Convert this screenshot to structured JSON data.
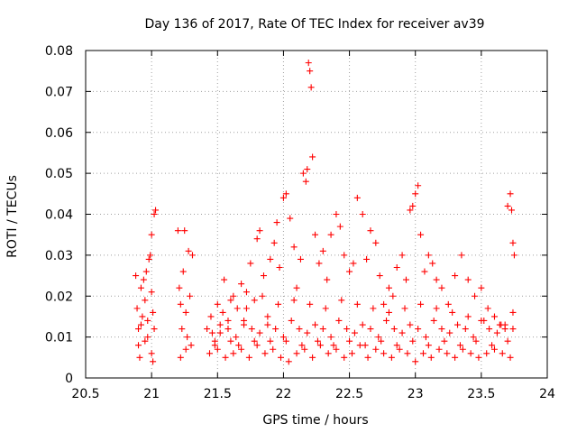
{
  "chart_data": {
    "type": "scatter",
    "title": "Day 136 of 2017, Rate Of TEC Index for receiver av39",
    "xlabel": "GPS time / hours",
    "ylabel": "ROTI / TECUs",
    "xlim": [
      20.5,
      24
    ],
    "ylim": [
      0,
      0.08
    ],
    "xticks": [
      20.5,
      21,
      21.5,
      22,
      22.5,
      23,
      23.5,
      24
    ],
    "xtick_labels": [
      "20.5",
      "21",
      "21.5",
      "22",
      "22.5",
      "23",
      "23.5",
      "24"
    ],
    "yticks": [
      0,
      0.01,
      0.02,
      0.03,
      0.04,
      0.05,
      0.06,
      0.07,
      0.08
    ],
    "ytick_labels": [
      "0",
      "0.01",
      "0.02",
      "0.03",
      "0.04",
      "0.05",
      "0.06",
      "0.07",
      "0.08"
    ],
    "grid": true,
    "marker": "+",
    "marker_color": "#ff0000",
    "series": [
      {
        "name": "ROTI",
        "points": [
          [
            20.88,
            0.025
          ],
          [
            20.89,
            0.017
          ],
          [
            20.9,
            0.012
          ],
          [
            20.9,
            0.008
          ],
          [
            20.91,
            0.005
          ],
          [
            20.92,
            0.022
          ],
          [
            20.93,
            0.015
          ],
          [
            20.94,
            0.024
          ],
          [
            20.95,
            0.019
          ],
          [
            20.96,
            0.026
          ],
          [
            20.97,
            0.01
          ],
          [
            20.98,
            0.029
          ],
          [
            20.99,
            0.03
          ],
          [
            21.0,
            0.035
          ],
          [
            21.0,
            0.021
          ],
          [
            21.01,
            0.016
          ],
          [
            21.02,
            0.04
          ],
          [
            21.03,
            0.041
          ],
          [
            21.02,
            0.012
          ],
          [
            21.0,
            0.006
          ],
          [
            20.95,
            0.009
          ],
          [
            20.92,
            0.013
          ],
          [
            21.01,
            0.004
          ],
          [
            20.97,
            0.014
          ],
          [
            21.2,
            0.036
          ],
          [
            21.21,
            0.022
          ],
          [
            21.22,
            0.018
          ],
          [
            21.23,
            0.012
          ],
          [
            21.24,
            0.026
          ],
          [
            21.25,
            0.036
          ],
          [
            21.26,
            0.016
          ],
          [
            21.27,
            0.01
          ],
          [
            21.28,
            0.031
          ],
          [
            21.29,
            0.02
          ],
          [
            21.3,
            0.008
          ],
          [
            21.31,
            0.03
          ],
          [
            21.22,
            0.005
          ],
          [
            21.26,
            0.007
          ],
          [
            21.42,
            0.012
          ],
          [
            21.45,
            0.015
          ],
          [
            21.48,
            0.008
          ],
          [
            21.5,
            0.018
          ],
          [
            21.52,
            0.011
          ],
          [
            21.55,
            0.024
          ],
          [
            21.58,
            0.014
          ],
          [
            21.6,
            0.009
          ],
          [
            21.62,
            0.02
          ],
          [
            21.65,
            0.017
          ],
          [
            21.68,
            0.023
          ],
          [
            21.7,
            0.013
          ],
          [
            21.72,
            0.021
          ],
          [
            21.75,
            0.028
          ],
          [
            21.78,
            0.019
          ],
          [
            21.8,
            0.034
          ],
          [
            21.82,
            0.036
          ],
          [
            21.85,
            0.025
          ],
          [
            21.88,
            0.015
          ],
          [
            21.9,
            0.029
          ],
          [
            21.93,
            0.033
          ],
          [
            21.95,
            0.038
          ],
          [
            21.97,
            0.027
          ],
          [
            22.0,
            0.044
          ],
          [
            22.02,
            0.045
          ],
          [
            22.05,
            0.039
          ],
          [
            22.08,
            0.032
          ],
          [
            22.1,
            0.022
          ],
          [
            22.13,
            0.029
          ],
          [
            22.15,
            0.05
          ],
          [
            22.17,
            0.048
          ],
          [
            22.18,
            0.051
          ],
          [
            22.19,
            0.077
          ],
          [
            22.2,
            0.075
          ],
          [
            22.21,
            0.071
          ],
          [
            22.22,
            0.054
          ],
          [
            22.24,
            0.035
          ],
          [
            22.27,
            0.028
          ],
          [
            22.3,
            0.031
          ],
          [
            22.33,
            0.024
          ],
          [
            22.36,
            0.035
          ],
          [
            22.4,
            0.04
          ],
          [
            22.43,
            0.037
          ],
          [
            22.46,
            0.03
          ],
          [
            22.5,
            0.026
          ],
          [
            22.53,
            0.028
          ],
          [
            22.56,
            0.044
          ],
          [
            22.6,
            0.04
          ],
          [
            22.63,
            0.029
          ],
          [
            22.66,
            0.036
          ],
          [
            22.7,
            0.033
          ],
          [
            22.73,
            0.025
          ],
          [
            22.76,
            0.018
          ],
          [
            22.8,
            0.022
          ],
          [
            22.83,
            0.02
          ],
          [
            22.86,
            0.027
          ],
          [
            22.9,
            0.03
          ],
          [
            22.93,
            0.024
          ],
          [
            22.96,
            0.041
          ],
          [
            22.98,
            0.042
          ],
          [
            23.0,
            0.045
          ],
          [
            23.02,
            0.047
          ],
          [
            23.04,
            0.035
          ],
          [
            23.07,
            0.026
          ],
          [
            23.1,
            0.03
          ],
          [
            23.13,
            0.028
          ],
          [
            23.16,
            0.024
          ],
          [
            23.2,
            0.022
          ],
          [
            23.25,
            0.018
          ],
          [
            23.3,
            0.025
          ],
          [
            23.35,
            0.03
          ],
          [
            23.4,
            0.024
          ],
          [
            23.45,
            0.02
          ],
          [
            23.5,
            0.022
          ],
          [
            23.55,
            0.017
          ],
          [
            23.6,
            0.015
          ],
          [
            23.65,
            0.013
          ],
          [
            23.68,
            0.012
          ],
          [
            23.7,
            0.042
          ],
          [
            23.72,
            0.045
          ],
          [
            23.73,
            0.041
          ],
          [
            23.74,
            0.033
          ],
          [
            23.75,
            0.03
          ],
          [
            23.74,
            0.016
          ],
          [
            21.44,
            0.006
          ],
          [
            21.5,
            0.007
          ],
          [
            21.56,
            0.005
          ],
          [
            21.62,
            0.006
          ],
          [
            21.68,
            0.007
          ],
          [
            21.74,
            0.005
          ],
          [
            21.8,
            0.008
          ],
          [
            21.86,
            0.006
          ],
          [
            21.92,
            0.007
          ],
          [
            21.98,
            0.005
          ],
          [
            22.04,
            0.004
          ],
          [
            22.1,
            0.006
          ],
          [
            22.16,
            0.007
          ],
          [
            22.22,
            0.005
          ],
          [
            22.28,
            0.008
          ],
          [
            22.34,
            0.006
          ],
          [
            22.4,
            0.007
          ],
          [
            22.46,
            0.005
          ],
          [
            22.52,
            0.006
          ],
          [
            22.58,
            0.008
          ],
          [
            22.64,
            0.005
          ],
          [
            22.7,
            0.007
          ],
          [
            22.76,
            0.006
          ],
          [
            22.82,
            0.005
          ],
          [
            22.88,
            0.007
          ],
          [
            22.94,
            0.006
          ],
          [
            23.0,
            0.004
          ],
          [
            23.06,
            0.006
          ],
          [
            23.12,
            0.005
          ],
          [
            23.18,
            0.007
          ],
          [
            23.24,
            0.006
          ],
          [
            23.3,
            0.005
          ],
          [
            23.36,
            0.007
          ],
          [
            23.42,
            0.006
          ],
          [
            23.48,
            0.005
          ],
          [
            23.54,
            0.006
          ],
          [
            23.6,
            0.007
          ],
          [
            23.66,
            0.006
          ],
          [
            23.72,
            0.005
          ],
          [
            21.46,
            0.011
          ],
          [
            21.52,
            0.013
          ],
          [
            21.58,
            0.012
          ],
          [
            21.64,
            0.01
          ],
          [
            21.7,
            0.014
          ],
          [
            21.76,
            0.012
          ],
          [
            21.82,
            0.011
          ],
          [
            21.88,
            0.013
          ],
          [
            21.94,
            0.012
          ],
          [
            22.0,
            0.01
          ],
          [
            22.06,
            0.014
          ],
          [
            22.12,
            0.012
          ],
          [
            22.18,
            0.011
          ],
          [
            22.24,
            0.013
          ],
          [
            22.3,
            0.012
          ],
          [
            22.36,
            0.01
          ],
          [
            22.42,
            0.014
          ],
          [
            22.48,
            0.012
          ],
          [
            22.54,
            0.011
          ],
          [
            22.6,
            0.013
          ],
          [
            22.66,
            0.012
          ],
          [
            22.72,
            0.01
          ],
          [
            22.78,
            0.014
          ],
          [
            22.84,
            0.012
          ],
          [
            22.9,
            0.011
          ],
          [
            22.96,
            0.013
          ],
          [
            23.02,
            0.012
          ],
          [
            23.08,
            0.01
          ],
          [
            23.14,
            0.014
          ],
          [
            23.2,
            0.012
          ],
          [
            23.26,
            0.011
          ],
          [
            23.32,
            0.013
          ],
          [
            23.38,
            0.012
          ],
          [
            23.44,
            0.01
          ],
          [
            23.5,
            0.014
          ],
          [
            23.56,
            0.012
          ],
          [
            23.62,
            0.011
          ],
          [
            23.68,
            0.013
          ],
          [
            23.74,
            0.012
          ],
          [
            21.48,
            0.009
          ],
          [
            21.54,
            0.016
          ],
          [
            21.6,
            0.019
          ],
          [
            21.66,
            0.008
          ],
          [
            21.72,
            0.017
          ],
          [
            21.78,
            0.009
          ],
          [
            21.84,
            0.02
          ],
          [
            21.9,
            0.009
          ],
          [
            21.96,
            0.018
          ],
          [
            22.02,
            0.009
          ],
          [
            22.08,
            0.019
          ],
          [
            22.14,
            0.008
          ],
          [
            22.2,
            0.018
          ],
          [
            22.26,
            0.009
          ],
          [
            22.32,
            0.017
          ],
          [
            22.38,
            0.008
          ],
          [
            22.44,
            0.019
          ],
          [
            22.5,
            0.009
          ],
          [
            22.56,
            0.018
          ],
          [
            22.62,
            0.008
          ],
          [
            22.68,
            0.017
          ],
          [
            22.74,
            0.009
          ],
          [
            22.8,
            0.016
          ],
          [
            22.86,
            0.008
          ],
          [
            22.92,
            0.017
          ],
          [
            22.98,
            0.009
          ],
          [
            23.04,
            0.018
          ],
          [
            23.1,
            0.008
          ],
          [
            23.16,
            0.017
          ],
          [
            23.22,
            0.009
          ],
          [
            23.28,
            0.016
          ],
          [
            23.34,
            0.008
          ],
          [
            23.4,
            0.015
          ],
          [
            23.46,
            0.009
          ],
          [
            23.52,
            0.014
          ],
          [
            23.58,
            0.008
          ],
          [
            23.64,
            0.013
          ],
          [
            23.7,
            0.009
          ]
        ]
      }
    ]
  }
}
